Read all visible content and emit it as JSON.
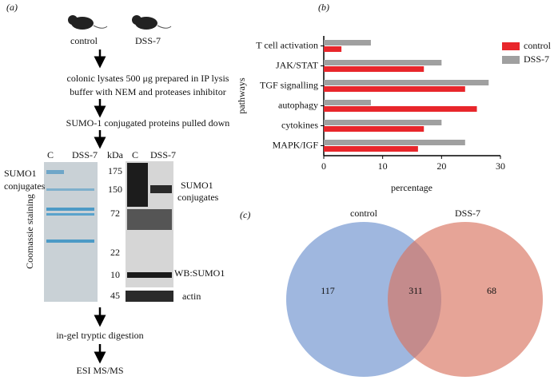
{
  "panel_a": {
    "label": "(a)",
    "mice": [
      "control",
      "DSS-7"
    ],
    "step1": [
      "colonic lysates 500 μg prepared in IP lysis",
      "buffer with NEM and proteases inhibitor"
    ],
    "step2": "SUMO-1 conjugated proteins pulled down",
    "gel_headers": [
      "C",
      "DSS-7",
      "kDa",
      "C",
      "DSS-7"
    ],
    "left_gel_label": [
      "SUMO1",
      "conjugates"
    ],
    "stain_label": "Coomassie staining",
    "markers": [
      "175",
      "150",
      "72",
      "22",
      "10",
      "45"
    ],
    "right_gel_label": [
      "SUMO1",
      "conjugates"
    ],
    "wb_label": "WB:SUMO1",
    "actin_label": "actin",
    "step3": "in-gel tryptic digestion",
    "step4": "ESI MS/MS"
  },
  "chart_data": {
    "type": "bar",
    "orientation": "horizontal",
    "panel_label": "(b)",
    "categories": [
      "T cell activation",
      "JAK/STAT",
      "TGF signalling",
      "autophagy",
      "cytokines",
      "MAPK/IGF"
    ],
    "series": [
      {
        "name": "control",
        "color": "#e8262b",
        "values": [
          3,
          17,
          24,
          26,
          17,
          16
        ]
      },
      {
        "name": "DSS-7",
        "color": "#a0a0a0",
        "values": [
          8,
          20,
          28,
          8,
          20,
          24
        ]
      }
    ],
    "xlabel": "percentage",
    "ylabel": "pathways",
    "xlim": [
      0,
      30
    ],
    "xticks": [
      0,
      10,
      20,
      30
    ],
    "legend": "right"
  },
  "panel_c": {
    "label": "(c)",
    "sets": [
      "control",
      "DSS-7"
    ],
    "only_first": "117",
    "both": "311",
    "only_second": "68"
  }
}
